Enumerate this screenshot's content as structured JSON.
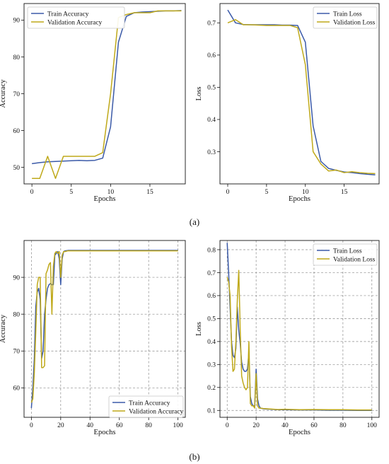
{
  "panel_labels": [
    "(a)",
    "(b)"
  ],
  "colors": {
    "train": "#3b5aa8",
    "validation": "#bfa91a",
    "grid": "#8a8a8a"
  },
  "chart_data": [
    {
      "type": "line",
      "id": "a-accuracy",
      "xlabel": "Epochs",
      "ylabel": "Accuracy",
      "xlim": [
        -1,
        19.5
      ],
      "ylim": [
        45.5,
        94.5
      ],
      "xticks": [
        0,
        5,
        10,
        15
      ],
      "yticks": [
        50,
        60,
        70,
        80,
        90
      ],
      "grid": false,
      "legend": "top-left",
      "series": [
        {
          "name": "Train Accuracy",
          "x": [
            0,
            1,
            2,
            3,
            4,
            5,
            6,
            7,
            8,
            9,
            10,
            11,
            12,
            13,
            14,
            15,
            16,
            17,
            18,
            19
          ],
          "y": [
            51,
            51.3,
            51.5,
            51.6,
            51.7,
            51.8,
            51.9,
            51.8,
            51.9,
            52.5,
            61,
            84,
            91,
            92,
            92.2,
            92.3,
            92.4,
            92.5,
            92.5,
            92.6
          ]
        },
        {
          "name": "Validation Accuracy",
          "x": [
            0,
            1,
            2,
            3,
            4,
            5,
            6,
            7,
            8,
            9,
            10,
            11,
            12,
            13,
            14,
            15,
            16,
            17,
            18,
            19
          ],
          "y": [
            47,
            47,
            53,
            47,
            53,
            53,
            53,
            53,
            53,
            54,
            70,
            90.7,
            91.5,
            92,
            92,
            92,
            92.5,
            92.5,
            92.5,
            92.5
          ]
        }
      ]
    },
    {
      "type": "line",
      "id": "a-loss",
      "xlabel": "Epochs",
      "ylabel": "Loss",
      "xlim": [
        -1,
        19.5
      ],
      "ylim": [
        0.2,
        0.76
      ],
      "xticks": [
        0,
        5,
        10,
        15
      ],
      "yticks": [
        0.3,
        0.4,
        0.5,
        0.6,
        0.7
      ],
      "grid": false,
      "legend": "top-right",
      "series": [
        {
          "name": "Train Loss",
          "x": [
            0,
            1,
            2,
            3,
            4,
            5,
            6,
            7,
            8,
            9,
            10,
            11,
            12,
            13,
            14,
            15,
            16,
            17,
            18,
            19
          ],
          "y": [
            0.74,
            0.7,
            0.695,
            0.694,
            0.694,
            0.694,
            0.694,
            0.693,
            0.693,
            0.692,
            0.64,
            0.38,
            0.27,
            0.248,
            0.242,
            0.237,
            0.235,
            0.232,
            0.23,
            0.228
          ]
        },
        {
          "name": "Validation Loss",
          "x": [
            0,
            1,
            2,
            3,
            4,
            5,
            6,
            7,
            8,
            9,
            10,
            11,
            12,
            13,
            14,
            15,
            16,
            17,
            18,
            19
          ],
          "y": [
            0.7,
            0.71,
            0.694,
            0.694,
            0.693,
            0.692,
            0.692,
            0.692,
            0.692,
            0.685,
            0.57,
            0.3,
            0.262,
            0.24,
            0.243,
            0.235,
            0.238,
            0.235,
            0.233,
            0.232
          ]
        }
      ]
    },
    {
      "type": "line",
      "id": "b-accuracy",
      "xlabel": "Epochs",
      "ylabel": "Accuracy",
      "xlim": [
        -5,
        105
      ],
      "ylim": [
        52,
        100
      ],
      "xticks": [
        0,
        20,
        40,
        60,
        80,
        100
      ],
      "yticks": [
        60,
        70,
        80,
        90
      ],
      "grid": true,
      "legend": "bottom-right",
      "series": [
        {
          "name": "Train Accuracy",
          "x": [
            0,
            1,
            2,
            3,
            4,
            5,
            6,
            7,
            8,
            9,
            10,
            11,
            12,
            13,
            14,
            15,
            16,
            17,
            18,
            19,
            20,
            21,
            22,
            23,
            25,
            30,
            40,
            50,
            60,
            70,
            80,
            90,
            100
          ],
          "y": [
            54.5,
            60,
            68,
            82,
            86,
            87,
            84,
            68,
            70,
            80,
            84,
            87,
            88,
            88.3,
            88,
            88,
            96,
            96.5,
            97,
            95,
            88,
            95,
            97,
            97.2,
            97.3,
            97.3,
            97.3,
            97.3,
            97.3,
            97.3,
            97.3,
            97.3,
            97.3
          ]
        },
        {
          "name": "Validation Accuracy",
          "x": [
            0,
            1,
            2,
            3,
            4,
            5,
            6,
            7,
            8,
            9,
            10,
            11,
            12,
            13,
            14,
            15,
            16,
            17,
            18,
            19,
            20,
            21,
            22,
            23,
            25,
            30,
            40,
            50,
            60,
            70,
            80,
            90,
            100
          ],
          "y": [
            56,
            57,
            64,
            75,
            88,
            90,
            90,
            65.5,
            65.5,
            66,
            91,
            92,
            93.5,
            94,
            80,
            93,
            96.5,
            97,
            96.5,
            97,
            90,
            96,
            97,
            97,
            97.2,
            97.2,
            97.2,
            97.2,
            97.2,
            97.2,
            97.2,
            97.2,
            97.2
          ]
        }
      ]
    },
    {
      "type": "line",
      "id": "b-loss",
      "xlabel": "Epochs",
      "ylabel": "Loss",
      "xlim": [
        -5,
        105
      ],
      "ylim": [
        0.07,
        0.84
      ],
      "xticks": [
        0,
        20,
        40,
        60,
        80,
        100
      ],
      "yticks": [
        0.1,
        0.2,
        0.3,
        0.4,
        0.5,
        0.6,
        0.7,
        0.8
      ],
      "grid": true,
      "legend": "top-right",
      "series": [
        {
          "name": "Train Loss",
          "x": [
            0,
            1,
            2,
            3,
            4,
            5,
            6,
            7,
            8,
            9,
            10,
            11,
            12,
            13,
            14,
            15,
            16,
            17,
            18,
            19,
            20,
            21,
            22,
            23,
            25,
            30,
            35,
            40,
            50,
            60,
            70,
            80,
            90,
            100
          ],
          "y": [
            0.83,
            0.7,
            0.55,
            0.4,
            0.34,
            0.33,
            0.37,
            0.55,
            0.45,
            0.39,
            0.31,
            0.28,
            0.27,
            0.27,
            0.28,
            0.35,
            0.16,
            0.13,
            0.12,
            0.12,
            0.28,
            0.15,
            0.12,
            0.11,
            0.107,
            0.105,
            0.103,
            0.103,
            0.102,
            0.102,
            0.101,
            0.101,
            0.1,
            0.1
          ]
        },
        {
          "name": "Validation Loss",
          "x": [
            0,
            1,
            2,
            3,
            4,
            5,
            6,
            7,
            8,
            9,
            10,
            11,
            12,
            13,
            14,
            15,
            16,
            17,
            18,
            19,
            20,
            21,
            22,
            23,
            25,
            30,
            35,
            40,
            50,
            60,
            70,
            80,
            90,
            100
          ],
          "y": [
            0.68,
            0.66,
            0.6,
            0.38,
            0.27,
            0.28,
            0.4,
            0.58,
            0.71,
            0.45,
            0.25,
            0.22,
            0.2,
            0.19,
            0.2,
            0.4,
            0.13,
            0.12,
            0.12,
            0.11,
            0.26,
            0.12,
            0.11,
            0.11,
            0.108,
            0.106,
            0.104,
            0.105,
            0.103,
            0.104,
            0.103,
            0.103,
            0.102,
            0.102
          ]
        }
      ]
    }
  ]
}
